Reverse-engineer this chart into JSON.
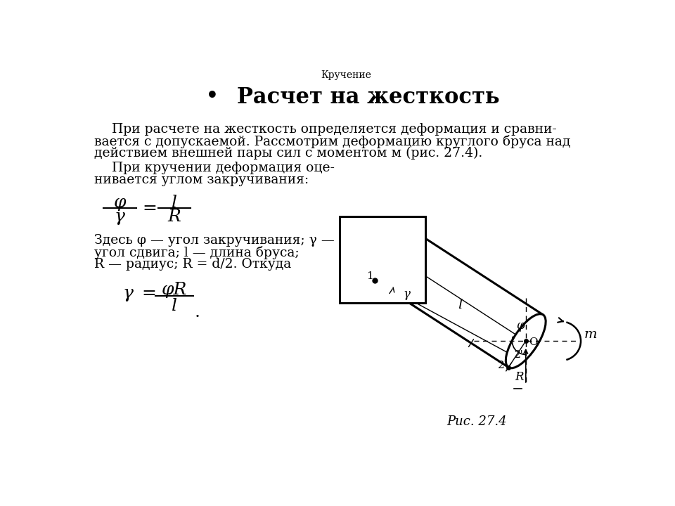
{
  "title": "Кручение",
  "heading_bullet": "•",
  "heading_text": "Расчет на жесткость",
  "para1": "При расчете на жесткость определяется деформация и сравни-",
  "para2": "вается с допускаемой. Рассмотрим деформацию круглого бруса над",
  "para3": "действием внешней пары сил с моментом м (рис. 27.4).",
  "para4": "При кручении деформация оце-",
  "para5": "нивается углом закручивания:",
  "para6": "Здесь φ — угол закручивания; γ —",
  "para7": "угол сдвига; l — длина бруса;",
  "para8": "R — радиус; R = d/2. Откуда",
  "fig_caption": "Рис. 27.4",
  "bg_color": "#ffffff",
  "text_color": "#000000"
}
